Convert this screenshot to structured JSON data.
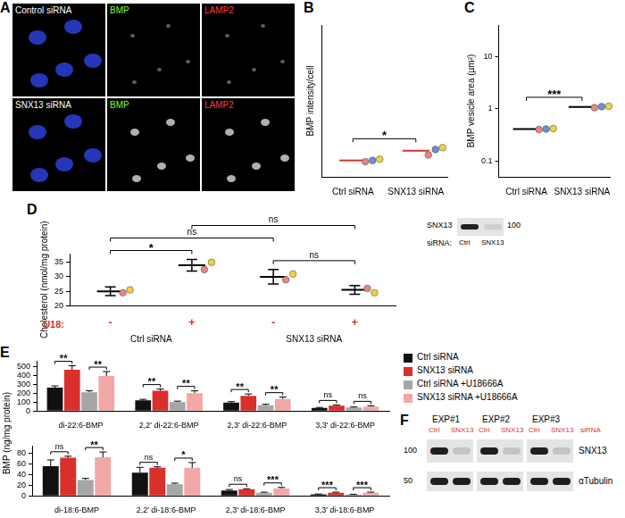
{
  "panel_labels": [
    "A",
    "B",
    "C",
    "D",
    "E",
    "F"
  ],
  "panel_a": {
    "rows": [
      "Control siRNA",
      "SNX13 siRNA"
    ],
    "channels": [
      {
        "label": "BMP",
        "color": "#7dff3a"
      },
      {
        "label": "LAMP2",
        "color": "#ff3b3b"
      }
    ]
  },
  "chart_data": [
    {
      "type": "strip",
      "ylabel": "BMP intensity/cell",
      "categories": [
        "Ctrl siRNA",
        "SNX13 siRNA"
      ],
      "values": [
        2.7,
        4.3
      ],
      "color": "#d9302c",
      "replicates": [
        {
          "color": "#e8857f",
          "values": [
            2.5,
            3.6
          ]
        },
        {
          "color": "#6b8fd6",
          "values": [
            2.7,
            4.5
          ]
        },
        {
          "color": "#f2d13a",
          "values": [
            2.9,
            4.8
          ]
        }
      ],
      "ylim": [
        0,
        25
      ],
      "tick_labels": "x",
      "annotations": [
        {
          "text": "*",
          "from": 0,
          "to": 1
        }
      ]
    },
    {
      "type": "strip",
      "ylabel": "BMP vesicle area (µm²)",
      "categories": [
        "Ctrl siRNA",
        "SNX13 siRNA"
      ],
      "values": [
        0.41,
        1.08
      ],
      "color": "#000000",
      "replicates": [
        {
          "color": "#e8857f",
          "values": [
            0.4,
            1.05
          ]
        },
        {
          "color": "#6b8fd6",
          "values": [
            0.41,
            1.1
          ]
        },
        {
          "color": "#f2d13a",
          "values": [
            0.42,
            1.12
          ]
        }
      ],
      "log": "y",
      "ylim": [
        0.05,
        40
      ],
      "yticks": [
        0.1,
        1,
        10
      ],
      "annotations": [
        {
          "text": "***",
          "from": 0,
          "to": 1
        }
      ]
    },
    {
      "type": "strip",
      "ylabel": "Cholesterol (nmol/mg protein)",
      "xlabel": "U18:",
      "categories": [
        "-",
        "+",
        "-",
        "+"
      ],
      "groups": [
        {
          "label": "Ctrl siRNA",
          "from": 0,
          "to": 1
        },
        {
          "label": "SNX13 siRNA",
          "from": 2,
          "to": 3
        }
      ],
      "values": [
        25,
        34,
        30,
        25.5
      ],
      "errors": [
        1.5,
        2,
        2.5,
        1.5
      ],
      "color": "#000000",
      "replicates": [
        {
          "color": "#e8857f",
          "values": [
            24.5,
            32.5,
            29,
            26
          ]
        },
        {
          "color": "#f2d13a",
          "values": [
            25.5,
            35,
            31,
            24.5
          ]
        }
      ],
      "ylim": [
        20,
        38
      ],
      "yticks": [
        20,
        25,
        30,
        35
      ],
      "annotations": [
        {
          "text": "*",
          "from": 0,
          "to": 1
        },
        {
          "text": "ns",
          "from": 2,
          "to": 3
        },
        {
          "text": "ns",
          "from": 0,
          "to": 2
        },
        {
          "text": "ns",
          "from": 1,
          "to": 3
        }
      ]
    },
    {
      "type": "bar",
      "ylabel": "BMP (ng/mg protein)",
      "categories": [
        "di-22:6-BMP",
        "2,2' di-22:6-BMP",
        "2,3' di-22:6-BMP",
        "3,3' di-22:6-BMP"
      ],
      "series": [
        {
          "name": "Ctrl siRNA",
          "color": "#111111",
          "values": [
            260,
            120,
            95,
            35
          ],
          "errors": [
            20,
            10,
            10,
            5
          ]
        },
        {
          "name": "SNX13 siRNA",
          "color": "#d9302c",
          "values": [
            460,
            225,
            170,
            60
          ],
          "errors": [
            45,
            20,
            20,
            8
          ]
        },
        {
          "name": "Ctrl siRNA +U18666A",
          "color": "#a6a6a6",
          "values": [
            210,
            100,
            65,
            40
          ],
          "errors": [
            15,
            10,
            10,
            5
          ]
        },
        {
          "name": "SNX13 siRNA +U18666A",
          "color": "#f2a7a7",
          "values": [
            390,
            200,
            135,
            50
          ],
          "errors": [
            50,
            25,
            20,
            8
          ]
        }
      ],
      "ylim": [
        0,
        560
      ],
      "yticks": [
        0,
        100,
        200,
        300,
        400,
        500
      ],
      "annotations": [
        {
          "category": 0,
          "from": 0,
          "to": 1,
          "text": "**"
        },
        {
          "category": 0,
          "from": 2,
          "to": 3,
          "text": "**"
        },
        {
          "category": 1,
          "from": 0,
          "to": 1,
          "text": "**"
        },
        {
          "category": 1,
          "from": 2,
          "to": 3,
          "text": "**"
        },
        {
          "category": 2,
          "from": 0,
          "to": 1,
          "text": "**"
        },
        {
          "category": 2,
          "from": 2,
          "to": 3,
          "text": "**"
        },
        {
          "category": 3,
          "from": 0,
          "to": 1,
          "text": "ns"
        },
        {
          "category": 3,
          "from": 2,
          "to": 3,
          "text": "ns"
        }
      ]
    },
    {
      "type": "bar",
      "categories": [
        "di-18:6-BMP",
        "2,2' di-18:6-BMP",
        "2,3' di-18:6-BMP",
        "3,3' di-18:6-BMP"
      ],
      "series": [
        {
          "color": "#111111",
          "values": [
            56,
            44,
            10,
            3
          ],
          "errors": [
            12,
            10,
            2,
            0.5
          ]
        },
        {
          "color": "#d9302c",
          "values": [
            72,
            53,
            12.5,
            6
          ],
          "errors": [
            3,
            2,
            1,
            1
          ]
        },
        {
          "color": "#a6a6a6",
          "values": [
            30,
            22,
            6,
            2.5
          ],
          "errors": [
            3,
            2,
            1,
            0.5
          ]
        },
        {
          "color": "#f2a7a7",
          "values": [
            73,
            53,
            14,
            6
          ],
          "errors": [
            10,
            10,
            2,
            1
          ]
        }
      ],
      "ylim": [
        0,
        95
      ],
      "yticks": [
        0,
        20,
        40,
        60,
        80
      ],
      "annotations": [
        {
          "category": 0,
          "from": 0,
          "to": 1,
          "text": "ns"
        },
        {
          "category": 0,
          "from": 2,
          "to": 3,
          "text": "**"
        },
        {
          "category": 1,
          "from": 0,
          "to": 1,
          "text": "ns"
        },
        {
          "category": 1,
          "from": 2,
          "to": 3,
          "text": "*"
        },
        {
          "category": 2,
          "from": 0,
          "to": 1,
          "text": "ns"
        },
        {
          "category": 2,
          "from": 2,
          "to": 3,
          "text": "***"
        },
        {
          "category": 3,
          "from": 0,
          "to": 1,
          "text": "***"
        },
        {
          "category": 3,
          "from": 2,
          "to": 3,
          "text": "***"
        }
      ]
    }
  ],
  "panel_d_blot": {
    "protein": "SNX13",
    "marker": "100",
    "lane_title": "siRNA:",
    "lanes": [
      "Ctrl",
      "SNX13"
    ]
  },
  "panel_f": {
    "experiments": [
      "EXP#1",
      "EXP#2",
      "EXP#3"
    ],
    "lanes": [
      "Ctrl",
      "SNX13"
    ],
    "lane_suffix": ":siRNA",
    "proteins": [
      {
        "name": "SNX13",
        "marker": "100"
      },
      {
        "name": "αTubulin",
        "marker": "50"
      }
    ]
  }
}
